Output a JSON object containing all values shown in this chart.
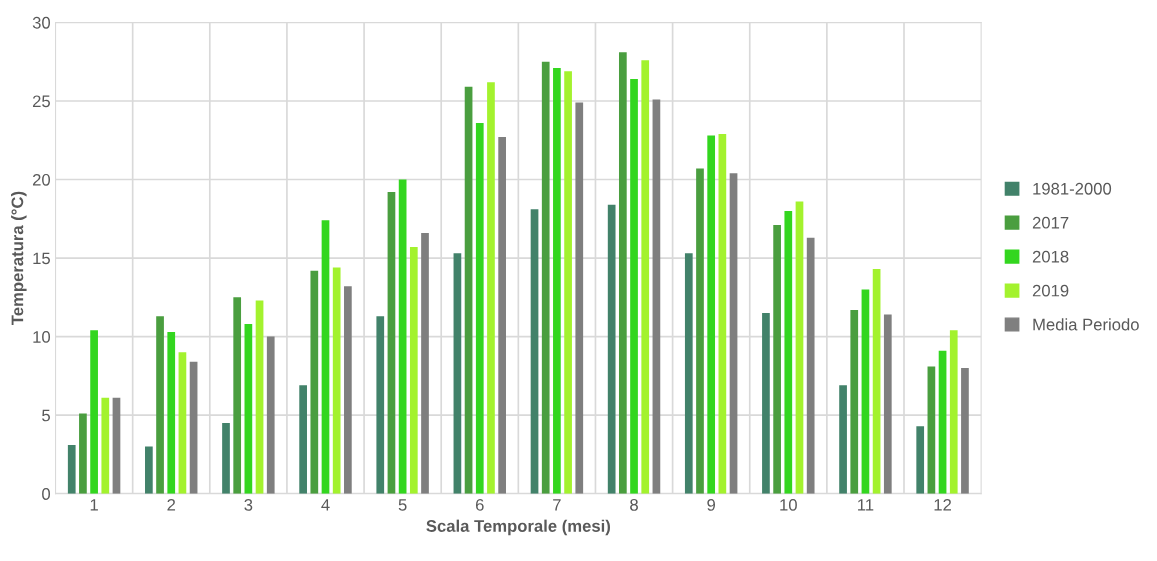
{
  "chart_data": {
    "type": "bar",
    "xlabel": "Scala Temporale (mesi)",
    "ylabel": "Temperatura (°C)",
    "categories": [
      "1",
      "2",
      "3",
      "4",
      "5",
      "6",
      "7",
      "8",
      "9",
      "10",
      "11",
      "12"
    ],
    "series": [
      {
        "name": "1981-2000",
        "color": "#42826a",
        "values": [
          3.1,
          3.0,
          4.5,
          6.9,
          11.3,
          15.3,
          18.1,
          18.4,
          15.3,
          11.5,
          6.9,
          4.3
        ]
      },
      {
        "name": "2017",
        "color": "#4a9e3f",
        "values": [
          5.1,
          11.3,
          12.5,
          14.2,
          19.2,
          25.9,
          27.5,
          28.1,
          20.7,
          17.1,
          11.7,
          8.1
        ]
      },
      {
        "name": "2018",
        "color": "#33d61f",
        "values": [
          10.4,
          10.3,
          10.8,
          17.4,
          20.0,
          23.6,
          27.1,
          26.4,
          22.8,
          18.0,
          13.0,
          9.1
        ]
      },
      {
        "name": "2019",
        "color": "#a3f22e",
        "values": [
          6.1,
          9.0,
          12.3,
          14.4,
          15.7,
          26.2,
          26.9,
          27.6,
          22.9,
          18.6,
          14.3,
          10.4
        ]
      },
      {
        "name": "Media Periodo",
        "color": "#7f7f7f",
        "values": [
          6.1,
          8.4,
          10.0,
          13.2,
          16.6,
          22.7,
          24.9,
          25.1,
          20.4,
          16.3,
          11.4,
          8.0
        ]
      }
    ],
    "ylim": [
      0,
      30
    ],
    "yticks": [
      0,
      5,
      10,
      15,
      20,
      25,
      30
    ],
    "grid": true,
    "legend": "right"
  }
}
